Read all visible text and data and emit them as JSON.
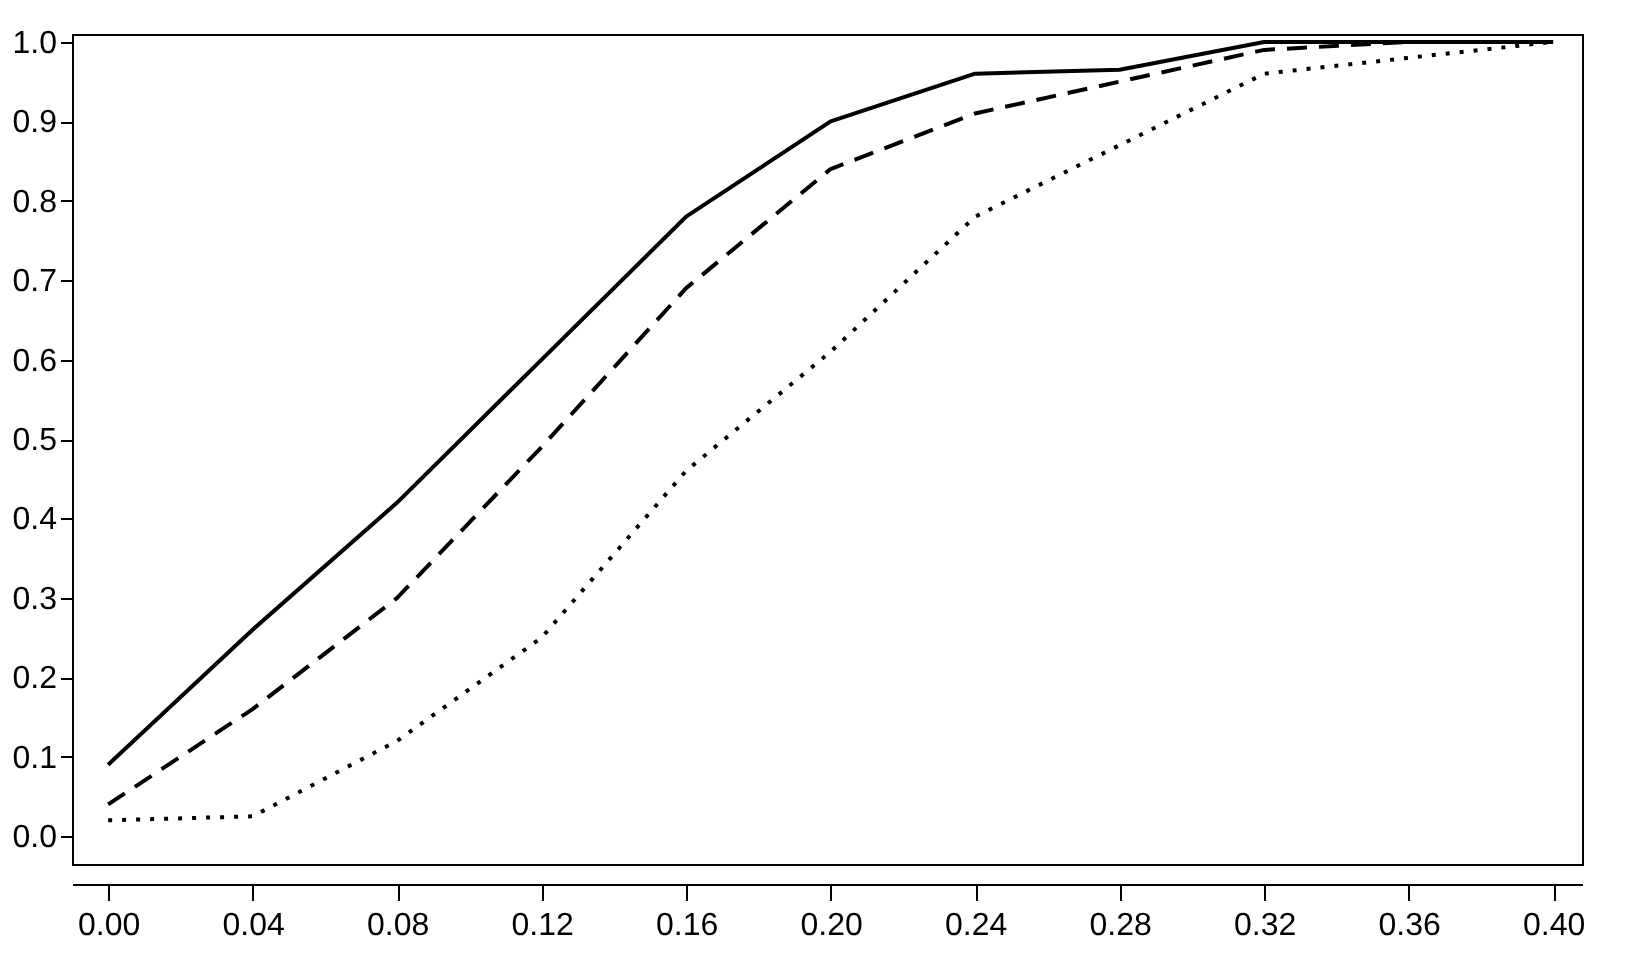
{
  "chart_data": {
    "type": "line",
    "x": [
      0.0,
      0.04,
      0.08,
      0.12,
      0.16,
      0.2,
      0.24,
      0.28,
      0.32,
      0.36,
      0.4
    ],
    "series": [
      {
        "color": "#000000",
        "line_style": "solid",
        "values": [
          0.09,
          0.26,
          0.42,
          0.6,
          0.78,
          0.9,
          0.96,
          0.965,
          1.0,
          1.0,
          1.0
        ]
      },
      {
        "color": "#000000",
        "line_style": "dashed",
        "values": [
          0.04,
          0.16,
          0.3,
          0.49,
          0.69,
          0.84,
          0.91,
          0.95,
          0.99,
          1.0,
          1.0
        ]
      },
      {
        "color": "#000000",
        "line_style": "dotted",
        "values": [
          0.02,
          0.025,
          0.12,
          0.25,
          0.46,
          0.61,
          0.78,
          0.87,
          0.96,
          0.98,
          1.0
        ]
      }
    ],
    "xlim": [
      -0.01,
      0.408
    ],
    "ylim": [
      -0.035,
      1.01
    ],
    "xticks": [
      {
        "value": 0.0,
        "label": "0.00"
      },
      0.04,
      0.08,
      0.12,
      0.16,
      {
        "value": 0.2,
        "label": "0.20"
      },
      0.24,
      0.28,
      0.32,
      0.36,
      {
        "value": 0.4,
        "label": "0.40"
      }
    ],
    "yticks": [
      {
        "value": 0,
        "label": "0.0"
      },
      0.1,
      0.2,
      0.3,
      0.4,
      0.5,
      0.6,
      0.7,
      0.8,
      0.9,
      {
        "value": 1,
        "label": "1.0"
      }
    ],
    "grid": false
  }
}
